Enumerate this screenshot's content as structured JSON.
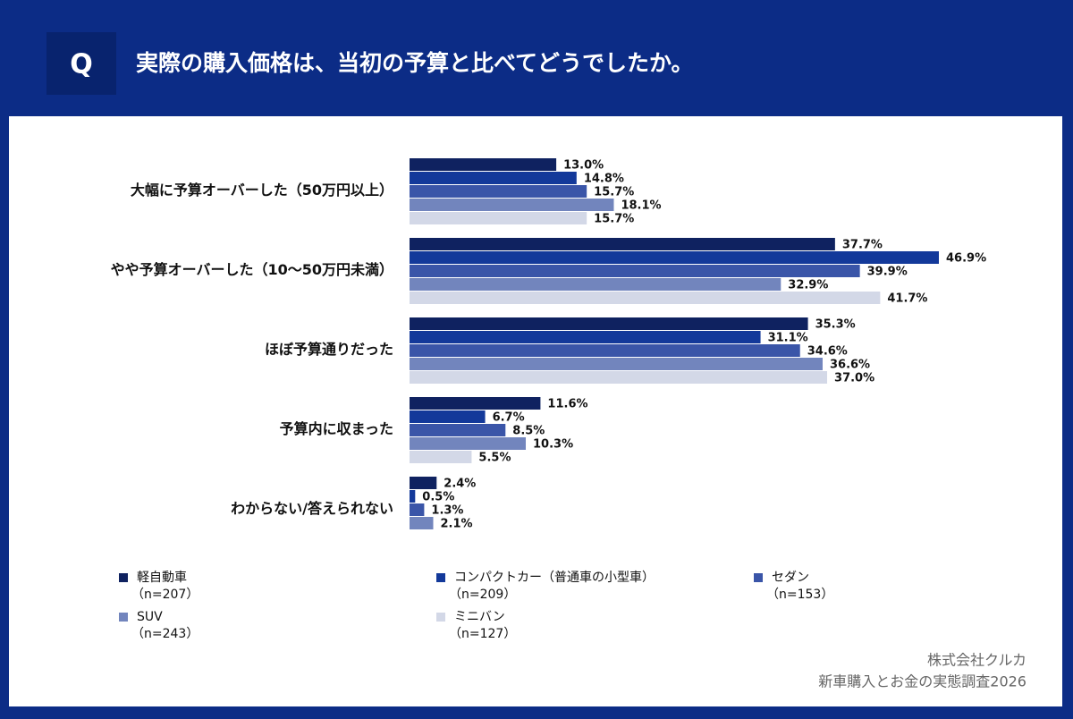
{
  "badge": "Q",
  "chart_data": {
    "type": "hbar",
    "title": "実際の購入価格は、当初の予算と比べてどうでしたか。",
    "categories": [
      "大幅に予算オーバーした（50万円以上）",
      "やや予算オーバーした（10〜50万円未満）",
      "ほぼ予算通りだった",
      "予算内に収まった",
      "わからない/答えられない"
    ],
    "series": [
      {
        "name": "軽自動車",
        "sample": "（n=207）",
        "color": "#0f2260",
        "values": [
          13.0,
          37.7,
          35.3,
          11.6,
          2.4
        ],
        "value_labels": [
          "13.0%",
          "37.7%",
          "35.3%",
          "11.6%",
          "2.4%"
        ]
      },
      {
        "name": "コンパクトカー（普通車の小型車）",
        "sample": "（n=209）",
        "color": "#13399a",
        "values": [
          14.8,
          46.9,
          31.1,
          6.7,
          0.5
        ],
        "value_labels": [
          "14.8%",
          "46.9%",
          "31.1%",
          "6.7%",
          "0.5%"
        ]
      },
      {
        "name": "セダン",
        "sample": "（n=153）",
        "color": "#3a55a8",
        "values": [
          15.7,
          39.9,
          34.6,
          8.5,
          1.3
        ],
        "value_labels": [
          "15.7%",
          "39.9%",
          "34.6%",
          "8.5%",
          "1.3%"
        ]
      },
      {
        "name": "SUV",
        "sample": "（n=243）",
        "color": "#7285bd",
        "values": [
          18.1,
          32.9,
          36.6,
          10.3,
          2.1
        ],
        "value_labels": [
          "18.1%",
          "32.9%",
          "36.6%",
          "10.3%",
          "2.1%"
        ]
      },
      {
        "name": "ミニバン",
        "sample": "（n=127）",
        "color": "#d3d8e7",
        "values": [
          15.7,
          41.7,
          37.0,
          5.5,
          null
        ],
        "value_labels": [
          "15.7%",
          "41.7%",
          "37.0%",
          "5.5%",
          null
        ]
      }
    ]
  },
  "footer": {
    "company": "株式会社クルカ",
    "survey": "新車購入とお金の実態調査2026"
  }
}
